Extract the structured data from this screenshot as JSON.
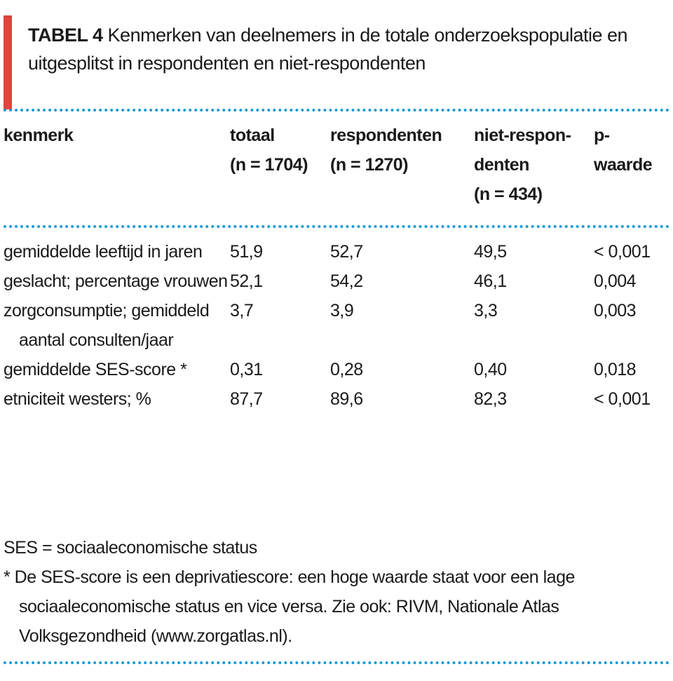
{
  "header": {
    "label": "TABEL 4",
    "title": "Kenmerken van deelnemers in de totale onderzoekspopulatie en uitgesplitst in respondenten en niet-respondenten"
  },
  "table": {
    "columns": [
      [
        "kenmerk"
      ],
      [
        "totaal",
        "(n = 1704)"
      ],
      [
        "respondenten",
        "(n = 1270)"
      ],
      [
        "niet-respon-",
        "denten",
        "(n = 434)"
      ],
      [
        "p-",
        "waarde"
      ]
    ],
    "rows": [
      [
        "gemiddelde leeftijd in jaren",
        "51,9",
        "52,7",
        "49,5",
        "< 0,001"
      ],
      [
        "geslacht; percentage vrouwen",
        "52,1",
        "54,2",
        "46,1",
        "0,004"
      ],
      [
        "zorgconsumptie; gemiddeld aantal consulten/jaar",
        "3,7",
        "3,9",
        "3,3",
        "0,003"
      ],
      [
        "gemiddelde SES-score *",
        "0,31",
        "0,28",
        "0,40",
        "0,018"
      ],
      [
        "etniciteit westers; %",
        "87,7",
        "89,6",
        "82,3",
        "< 0,001"
      ]
    ]
  },
  "notes": [
    "SES = sociaaleconomische status",
    "* De SES-score is een deprivatiescore: een hoge waarde staat voor een lage sociaaleconomische status en vice versa. Zie ook: RIVM, Nationale Atlas Volksgezondheid (www.zorgatlas.nl)."
  ]
}
